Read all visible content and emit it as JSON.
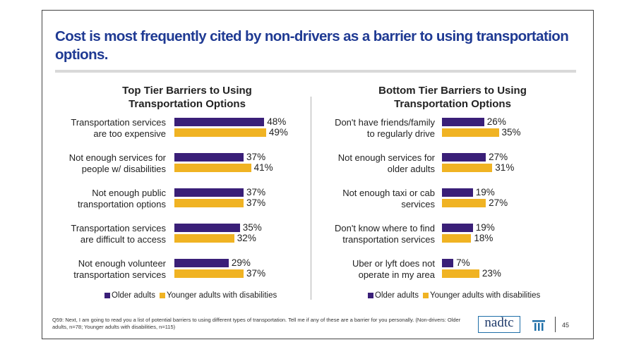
{
  "title": "Cost is most frequently cited by non-drivers as a barrier to using transportation options.",
  "colors": {
    "older": "#3a1f78",
    "younger": "#f0b323",
    "title": "#1f3a93"
  },
  "chart_data": [
    {
      "type": "bar",
      "orientation": "horizontal",
      "title": "Top Tier Barriers to Using Transportation Options",
      "categories": [
        "Transportation services are too expensive",
        "Not enough services for people w/ disabilities",
        "Not enough public transportation options",
        "Transportation services are difficult to access",
        "Not enough volunteer transportation services"
      ],
      "series": [
        {
          "name": "Older adults",
          "values": [
            48,
            37,
            37,
            35,
            29
          ]
        },
        {
          "name": "Younger adults with disabilities",
          "values": [
            49,
            41,
            37,
            32,
            37
          ]
        }
      ],
      "legend_position": "bottom"
    },
    {
      "type": "bar",
      "orientation": "horizontal",
      "title": "Bottom Tier Barriers to Using Transportation Options",
      "categories": [
        "Don't have friends/family to regularly drive",
        "Not enough services for older adults",
        "Not enough taxi or cab services",
        "Don't know where to find transportation services",
        "Uber or lyft does not operate in my area"
      ],
      "series": [
        {
          "name": "Older adults",
          "values": [
            26,
            27,
            19,
            19,
            7
          ]
        },
        {
          "name": "Younger adults with disabilities",
          "values": [
            35,
            31,
            27,
            18,
            23
          ]
        }
      ],
      "legend_position": "bottom"
    }
  ],
  "left": {
    "title_line1": "Top Tier Barriers to Using",
    "title_line2": "Transportation Options",
    "labels": [
      [
        "Transportation services",
        "are too expensive"
      ],
      [
        "Not enough services for",
        "people w/ disabilities"
      ],
      [
        "Not enough public",
        "transportation options"
      ],
      [
        "Transportation services",
        "are difficult to access"
      ],
      [
        "Not enough volunteer",
        "transportation services"
      ]
    ],
    "legend_older": "Older adults",
    "legend_younger": "Younger adults with disabilities"
  },
  "right": {
    "title_line1": "Bottom Tier Barriers to Using",
    "title_line2": "Transportation Options",
    "labels": [
      [
        "Don't have friends/family",
        "to regularly drive"
      ],
      [
        "Not enough services for",
        "older adults"
      ],
      [
        "Not enough taxi or cab",
        "services"
      ],
      [
        "Don't know where to find",
        "transportation services"
      ],
      [
        "Uber or lyft does not",
        "operate in my area"
      ]
    ],
    "legend_older": "Older adults",
    "legend_younger": "Younger adults with disabilities"
  },
  "footnote": "Q59: Next, I am going to read you a list of potential barriers to using different types of transportation. Tell me if any of these are a barrier for you personally. (Non-drivers: Older adults, n=78; Younger adults with disabilities, n=115)",
  "logo_text": "nadtc",
  "page_number": "45"
}
